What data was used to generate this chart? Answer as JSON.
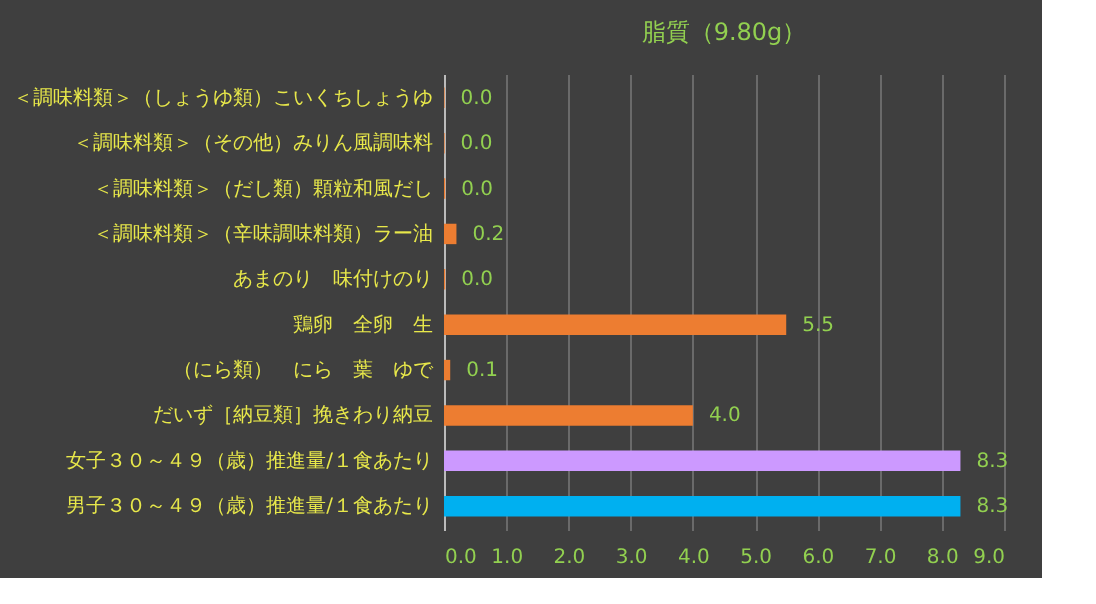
{
  "chart_data": {
    "type": "bar",
    "orientation": "horizontal",
    "title": "脂質（9.80g）",
    "categories": [
      "＜調味料類＞（しょうゆ類）こいくちしょうゆ",
      "＜調味料類＞（その他）みりん風調味料",
      "＜調味料類＞（だし類）顆粒和風だし",
      "＜調味料類＞（辛味調味料類）ラー油",
      "あまのり　味付けのり",
      "鶏卵　全卵　生",
      "（にら類）　にら　葉　ゆで",
      "だいず［納豆類］挽きわり納豆",
      "女子３０～４９（歳）推進量/１食あたり",
      "男子３０～４９（歳）推進量/１食あたり"
    ],
    "values": [
      0.01,
      0.01,
      0.02,
      0.2,
      0.02,
      5.5,
      0.1,
      4.0,
      8.3,
      8.3
    ],
    "value_labels": [
      "0.0",
      "0.0",
      "0.0",
      "0.2",
      "0.0",
      "5.5",
      "0.1",
      "4.0",
      "8.3",
      "8.3"
    ],
    "colors": [
      "#ed7d31",
      "#ed7d31",
      "#ed7d31",
      "#ed7d31",
      "#ed7d31",
      "#ed7d31",
      "#ed7d31",
      "#ed7d31",
      "#cc99ff",
      "#00b0f0"
    ],
    "xlim": [
      0,
      9
    ],
    "xticks": [
      {
        "value": 0,
        "label": "0.0"
      },
      {
        "value": 1,
        "label": "1.0"
      },
      {
        "value": 2,
        "label": "2.0"
      },
      {
        "value": 3,
        "label": "3.0"
      },
      {
        "value": 4,
        "label": "4.0"
      },
      {
        "value": 5,
        "label": "5.0"
      },
      {
        "value": 6,
        "label": "6.0"
      },
      {
        "value": 7,
        "label": "7.0"
      },
      {
        "value": 8,
        "label": "8.0"
      },
      {
        "value": 9,
        "label": "9.0"
      }
    ],
    "grid": "x"
  }
}
